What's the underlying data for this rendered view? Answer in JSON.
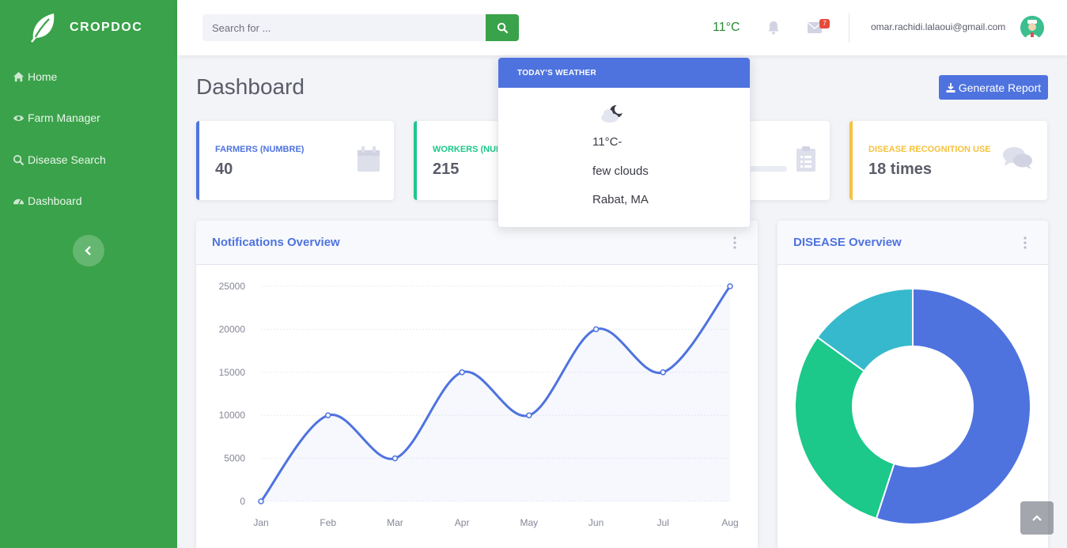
{
  "brand": {
    "name": "CROPDOC"
  },
  "sidebar": {
    "items": [
      {
        "label": "Home"
      },
      {
        "label": "Farm Manager"
      },
      {
        "label": "Disease Search"
      },
      {
        "label": "Dashboard"
      }
    ]
  },
  "topbar": {
    "search_placeholder": "Search for ...",
    "temperature": "11°C",
    "message_count": "7",
    "user_email": "omar.rachidi.lalaoui@gmail.com"
  },
  "page": {
    "title": "Dashboard",
    "report_button": "Generate Report"
  },
  "stats": [
    {
      "label": "FARMERS (NUMBRE)",
      "value": "40",
      "color": "#4e73df",
      "icon": "calendar-icon"
    },
    {
      "label": "WORKERS (NUMBRE)",
      "value": "215",
      "color": "#1cc88a",
      "icon": "dollar-icon"
    },
    {
      "label": "",
      "value": "",
      "color": "#36b9cc",
      "icon": "clipboard-icon",
      "progress_percent": 50
    },
    {
      "label": "DISEASE RECOGNITION USE",
      "value": "18 times",
      "color": "#f6c23e",
      "icon": "comments-icon"
    }
  ],
  "weather": {
    "heading": "TODAY'S WEATHER",
    "temp": "11°C-",
    "description": "few clouds",
    "location": "Rabat, MA"
  },
  "notifications_panel": {
    "title": "Notifications Overview"
  },
  "disease_panel": {
    "title": "DISEASE Overview"
  },
  "chart_data": [
    {
      "type": "line",
      "title": "Notifications Overview",
      "categories": [
        "Jan",
        "Feb",
        "Mar",
        "Apr",
        "May",
        "Jun",
        "Jul",
        "Aug"
      ],
      "values": [
        0,
        10000,
        5000,
        15000,
        10000,
        20000,
        15000,
        25000
      ],
      "yticks": [
        0,
        5000,
        10000,
        15000,
        20000,
        25000
      ],
      "ylim": [
        0,
        25000
      ],
      "color": "#4e73df",
      "grid": true
    },
    {
      "type": "pie",
      "title": "DISEASE Overview",
      "donut": true,
      "values": [
        55,
        30,
        15
      ],
      "colors": [
        "#4e73df",
        "#1cc88a",
        "#36b9cc"
      ]
    }
  ]
}
